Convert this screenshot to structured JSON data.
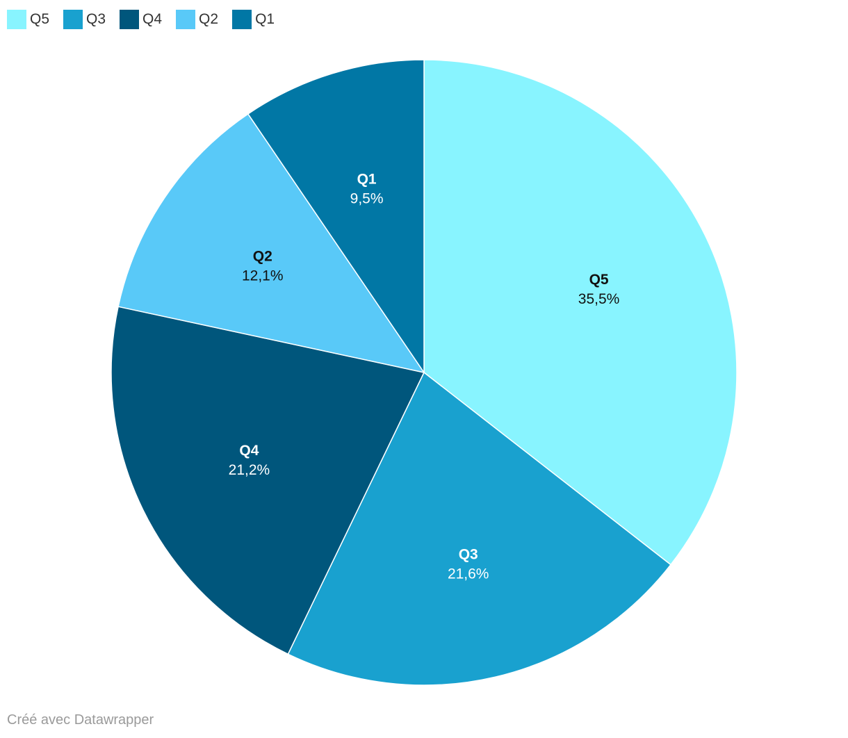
{
  "chart_data": {
    "type": "pie",
    "legend": [
      "Q5",
      "Q3",
      "Q4",
      "Q2",
      "Q1"
    ],
    "slices": [
      {
        "name": "Q5",
        "value": 35.5,
        "label": "35,5%",
        "color": "#88f4ff",
        "text_color": "#111111"
      },
      {
        "name": "Q3",
        "value": 21.6,
        "label": "21,6%",
        "color": "#19a1cf",
        "text_color": "#ffffff"
      },
      {
        "name": "Q4",
        "value": 21.2,
        "label": "21,2%",
        "color": "#00567c",
        "text_color": "#ffffff"
      },
      {
        "name": "Q2",
        "value": 12.1,
        "label": "12,1%",
        "color": "#59c9f8",
        "text_color": "#111111"
      },
      {
        "name": "Q1",
        "value": 9.5,
        "label": "9,5%",
        "color": "#0177a5",
        "text_color": "#ffffff"
      }
    ]
  },
  "legend_items": [
    {
      "label": "Q5",
      "color": "#88f4ff"
    },
    {
      "label": "Q3",
      "color": "#19a1cf"
    },
    {
      "label": "Q4",
      "color": "#00567c"
    },
    {
      "label": "Q2",
      "color": "#59c9f8"
    },
    {
      "label": "Q1",
      "color": "#0177a5"
    }
  ],
  "credit": "Créé avec Datawrapper"
}
